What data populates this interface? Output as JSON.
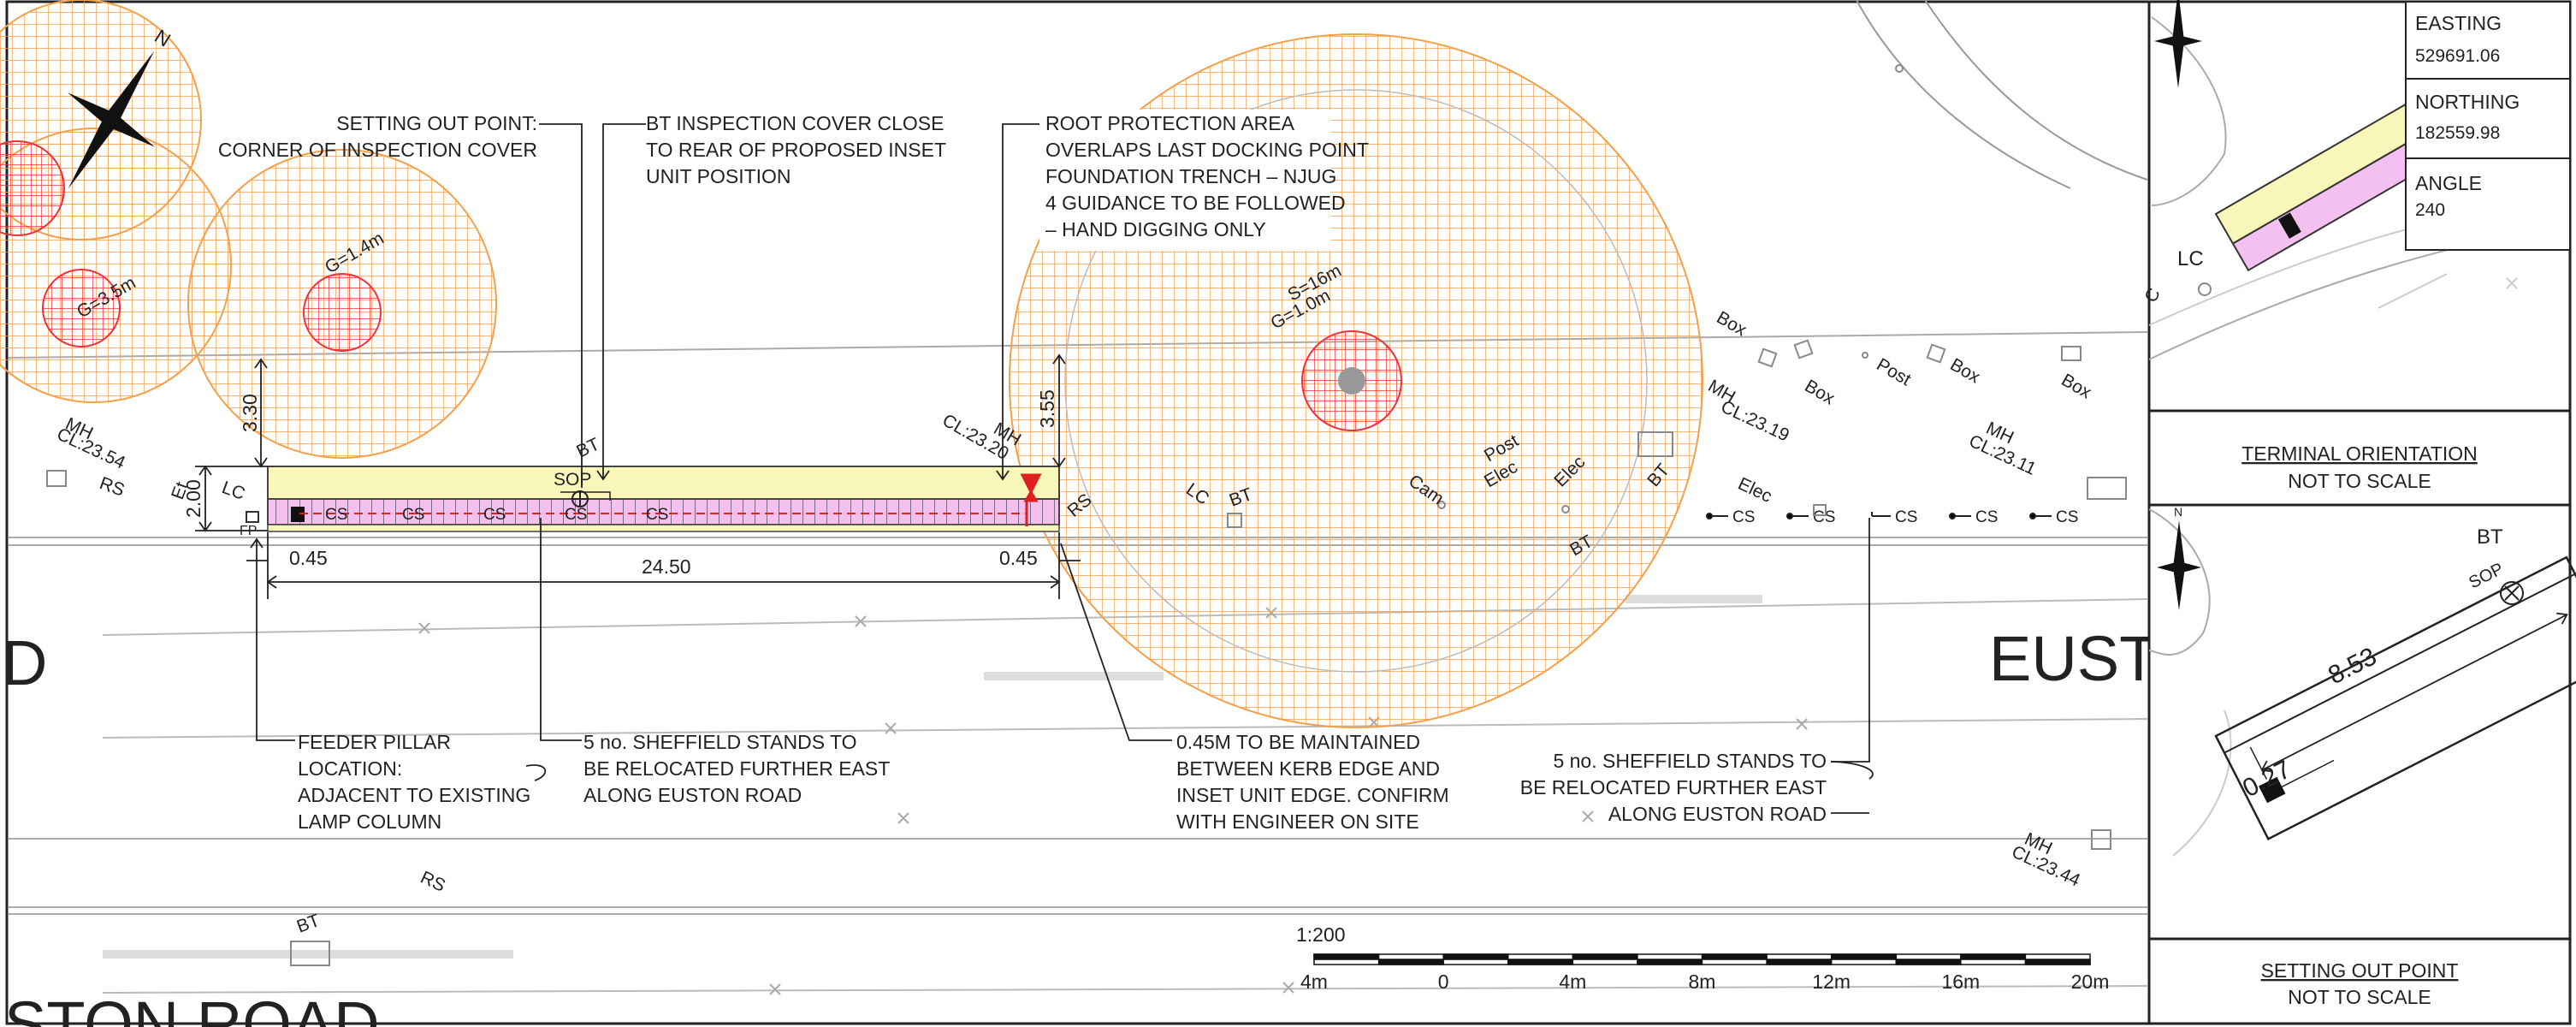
{
  "notes": {
    "setting_out": [
      "SETTING OUT POINT:",
      "CORNER OF INSPECTION COVER"
    ],
    "bt_cover": [
      "BT INSPECTION COVER CLOSE",
      "TO REAR OF PROPOSED INSET",
      "UNIT POSITION"
    ],
    "root_protection": [
      "ROOT PROTECTION AREA",
      "OVERLAPS LAST DOCKING POINT",
      "FOUNDATION TRENCH – NJUG",
      "4 GUIDANCE TO BE FOLLOWED",
      "– HAND DIGGING ONLY"
    ],
    "feeder_pillar": [
      "FEEDER PILLAR",
      "LOCATION:",
      "ADJACENT TO EXISTING",
      "LAMP COLUMN"
    ],
    "sheffield_west": [
      "5 no. SHEFFIELD STANDS TO",
      "BE RELOCATED FURTHER EAST",
      "ALONG EUSTON ROAD"
    ],
    "kerb_edge": [
      "0.45M TO BE MAINTAINED",
      "BETWEEN KERB EDGE AND",
      "INSET UNIT EDGE. CONFIRM",
      "WITH ENGINEER ON SITE"
    ],
    "sheffield_east": [
      "5 no. SHEFFIELD STANDS TO",
      "BE RELOCATED FURTHER EAST",
      "ALONG EUSTON ROAD"
    ]
  },
  "dimensions": {
    "length": "24.50",
    "offset_left": "0.45",
    "offset_right": "0.45",
    "height_left": "3.30",
    "height_right": "3.55",
    "width": "2.00",
    "sop_length": "8.53",
    "sop_offset": "0.27"
  },
  "trees": {
    "t1_label": "G=3.5m",
    "t2_label": "G=1.4m",
    "t3_label_s": "S=16m",
    "t3_label_g": "G=1.0m"
  },
  "street_labels": {
    "north": "N",
    "mh_1": "MH",
    "cl_1": "CL:23.54",
    "rs_1": "RS",
    "et": "Et",
    "lc_1": "LC",
    "fp": "FP",
    "bt_1": "BT",
    "sop_1": "SOP",
    "mh_2": "MH",
    "cl_2": "CL:23.20",
    "rs_2": "RS",
    "lc_2": "LC",
    "bt_2": "BT",
    "cam": "Cam",
    "post_1": "Post",
    "elec_1": "Elec",
    "elec_2": "Elec",
    "bt_3": "BT",
    "bt_4": "BT",
    "box_1": "Box",
    "box_2": "Box",
    "post_2": "Post",
    "box_3": "Box",
    "box_4": "Box",
    "mh_3": "MH",
    "cl_3": "CL:23.19",
    "mh_4": "MH",
    "cl_4": "CL:23.11",
    "elec_3": "Elec",
    "mh_5": "MH",
    "cl_5": "CL:23.44",
    "rs_3": "RS",
    "bt_5": "BT",
    "lc_top": "LC",
    "cs": "CS"
  },
  "road_names": {
    "left": "D",
    "right": "EUST",
    "bottom": "STON ROAD"
  },
  "scale_bar": {
    "ratio": "1:200",
    "ticks": [
      "4m",
      "0",
      "4m",
      "8m",
      "12m",
      "16m",
      "20m"
    ]
  },
  "panel": {
    "easting_label": "EASTING",
    "easting_value": "529691.06",
    "northing_label": "NORTHING",
    "northing_value": "182559.98",
    "angle_label": "ANGLE",
    "angle_value": "240",
    "lc": "LC",
    "c": "C",
    "terminal_title": "TERMINAL ORIENTATION",
    "terminal_sub": "NOT TO SCALE",
    "setting_out_title": "SETTING OUT POINT",
    "setting_out_sub": "NOT TO SCALE",
    "north": "N",
    "bt": "BT",
    "sop": "SOP"
  }
}
